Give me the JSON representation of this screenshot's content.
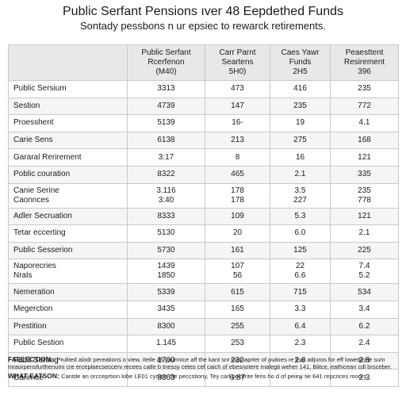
{
  "title": "Public Serfant Pensions ıver 48 Eepdethed Funds",
  "subtitle": "Sontady pessbons n ur epsiec to rewarck retirements.",
  "table": {
    "headers": [
      "",
      "Public Serfant\nRcerfenon\n(M40)",
      "Carr Parnt\nSeartens\n5H0)",
      "Caes Yawr\nFunds\n2H5",
      "Peaesttent\nResirement\n396"
    ],
    "rows": [
      [
        "Public Sersium",
        "3313",
        "473",
        "416",
        "235"
      ],
      [
        "Sestion",
        "4739",
        "147",
        "235",
        "772"
      ],
      [
        "Proesshent",
        "5139",
        "16-",
        "19",
        "4.1"
      ],
      [
        "Carie Sens",
        "6138",
        "213",
        "275",
        "168"
      ],
      [
        "Gararal Rerirement",
        "3:17",
        "8",
        "16",
        "121"
      ],
      [
        "Poblic couration",
        "8322",
        "465",
        "2.1",
        "335"
      ],
      [
        "Canie Serine\nCaonnces",
        "3.116\n3:40",
        "178\n178",
        "3.5\n227",
        "235\n778"
      ],
      [
        "Adler Secruation",
        "8333",
        "109",
        "5.3",
        "121"
      ],
      [
        "Tetar eccerting",
        "5130",
        "20",
        "6.0",
        "2.1"
      ],
      [
        "Public Sesserion",
        "5730",
        "161",
        "125",
        "225"
      ],
      [
        "Naporecries\nNrals",
        "1439\n1850",
        "107\n56",
        "22\n6.6",
        "7.4\n5.2"
      ],
      [
        "Nemeration",
        "5339",
        "615",
        "715",
        "534"
      ],
      [
        "Megerction",
        "3435",
        "165",
        "3.3",
        "3.4"
      ],
      [
        "Prestition",
        "8300",
        "255",
        "6.4",
        "6.2"
      ],
      [
        "Public Sestion",
        "1.145",
        "253",
        "2.3",
        "2.4"
      ],
      [
        "Fabit Serimg",
        "1700",
        "230",
        "2.6",
        "2.8"
      ],
      [
        "Carirnce",
        "8363",
        "6.87",
        "-",
        "2.3"
      ]
    ]
  },
  "notes": [
    {
      "label": "FAELECTION.-",
      "text": "Prulited alodr pereations o view, Iteile afi yourmice aff the kant snr may aprter of puitiıes re that adjuros for eff lowetonhe sum mraorpensfurthenumi cre erceplaecseccerv recees catle b tnessy cetes cef caich of ebesnotere rnalegti weher 141, Biitce, eathicean cdl brsceber."
    },
    {
      "label": "WHAT EATSON:",
      "text": "Cantde an orcceprtion lobe LE01 cyrlate the peccstiony, Tey carl pecerite feris ho d of peiiny tie 641 repcrices moors."
    }
  ]
}
